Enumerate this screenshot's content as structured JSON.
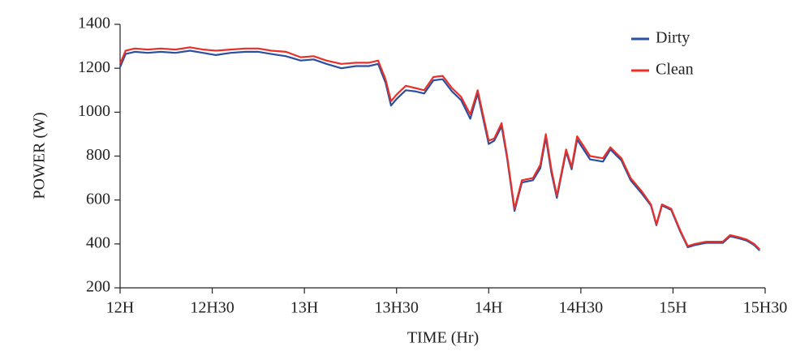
{
  "chart_data": {
    "type": "line",
    "xlabel": "TIME (Hr)",
    "ylabel": "POWER (W)",
    "x": [
      12.0,
      12.03,
      12.08,
      12.15,
      12.22,
      12.3,
      12.38,
      12.45,
      12.52,
      12.6,
      12.68,
      12.75,
      12.82,
      12.9,
      12.98,
      13.05,
      13.12,
      13.2,
      13.28,
      13.35,
      13.4,
      13.44,
      13.47,
      13.5,
      13.55,
      13.6,
      13.65,
      13.7,
      13.75,
      13.8,
      13.85,
      13.9,
      13.94,
      14.0,
      14.03,
      14.07,
      14.1,
      14.14,
      14.18,
      14.24,
      14.28,
      14.31,
      14.34,
      14.37,
      14.42,
      14.45,
      14.48,
      14.55,
      14.62,
      14.66,
      14.72,
      14.77,
      14.83,
      14.88,
      14.91,
      14.94,
      14.99,
      15.04,
      15.08,
      15.12,
      15.18,
      15.27,
      15.31,
      15.36,
      15.4,
      15.44,
      15.47
    ],
    "series": [
      {
        "name": "Dirty",
        "color": "#2b4fa0",
        "values": [
          1205,
          1265,
          1275,
          1270,
          1275,
          1270,
          1280,
          1270,
          1260,
          1270,
          1275,
          1275,
          1265,
          1255,
          1235,
          1240,
          1220,
          1200,
          1210,
          1210,
          1220,
          1135,
          1030,
          1060,
          1100,
          1095,
          1085,
          1145,
          1150,
          1095,
          1055,
          970,
          1085,
          855,
          870,
          935,
          790,
          550,
          680,
          690,
          745,
          885,
          725,
          610,
          820,
          740,
          875,
          785,
          775,
          830,
          780,
          690,
          630,
          575,
          485,
          575,
          555,
          455,
          385,
          395,
          405,
          405,
          435,
          425,
          415,
          395,
          370
        ]
      },
      {
        "name": "Clean",
        "color": "#e8302a",
        "values": [
          1220,
          1280,
          1290,
          1285,
          1290,
          1285,
          1295,
          1285,
          1280,
          1285,
          1290,
          1290,
          1280,
          1275,
          1250,
          1255,
          1235,
          1220,
          1225,
          1225,
          1235,
          1150,
          1050,
          1080,
          1120,
          1110,
          1100,
          1160,
          1165,
          1110,
          1070,
          990,
          1100,
          870,
          880,
          950,
          800,
          560,
          690,
          700,
          760,
          900,
          740,
          620,
          830,
          750,
          890,
          800,
          790,
          840,
          790,
          700,
          640,
          580,
          490,
          580,
          560,
          460,
          390,
          400,
          410,
          410,
          440,
          430,
          420,
          400,
          375
        ]
      }
    ],
    "xlim": [
      12,
      15.5
    ],
    "xticks": [
      {
        "value": 12,
        "label": "12H"
      },
      {
        "value": 12.5,
        "label": "12H30"
      },
      {
        "value": 13,
        "label": "13H"
      },
      {
        "value": 13.5,
        "label": "13H30"
      },
      {
        "value": 14,
        "label": "14H"
      },
      {
        "value": 14.5,
        "label": "14H30"
      },
      {
        "value": 15,
        "label": "15H"
      },
      {
        "value": 15.5,
        "label": "15H30"
      }
    ],
    "ylim": [
      200,
      1400
    ],
    "yticks": [
      200,
      400,
      600,
      800,
      1000,
      1200,
      1400
    ],
    "grid": false,
    "legend": "upper right"
  }
}
